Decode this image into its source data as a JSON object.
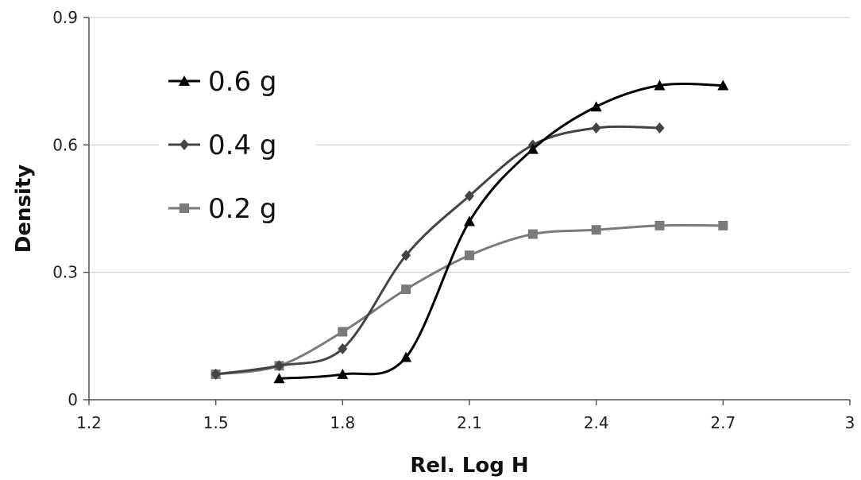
{
  "chart_data": {
    "type": "line",
    "title": "",
    "xlabel": "Rel. Log H",
    "ylabel": "Density",
    "xlim": [
      1.2,
      3.0
    ],
    "ylim": [
      0,
      0.9
    ],
    "xticks": [
      1.2,
      1.5,
      1.8,
      2.1,
      2.4,
      2.7,
      3.0
    ],
    "xtick_labels": [
      "1.2",
      "1.5",
      "1.8",
      "2.1",
      "2.4",
      "2.7",
      "3"
    ],
    "yticks": [
      0,
      0.3,
      0.6,
      0.9
    ],
    "ytick_labels": [
      "0",
      "0.3",
      "0.6",
      "0.9"
    ],
    "grid": "horizontal",
    "legend": "top-left",
    "smooth": true,
    "series": [
      {
        "name": "0.6 g",
        "marker": "triangle",
        "color": "#000000",
        "x": [
          1.65,
          1.8,
          1.95,
          2.1,
          2.25,
          2.4,
          2.55,
          2.7
        ],
        "y": [
          0.05,
          0.06,
          0.1,
          0.42,
          0.59,
          0.69,
          0.74,
          0.74
        ]
      },
      {
        "name": "0.4 g",
        "marker": "diamond",
        "color": "#444444",
        "x": [
          1.5,
          1.65,
          1.8,
          1.95,
          2.1,
          2.25,
          2.4,
          2.55
        ],
        "y": [
          0.06,
          0.08,
          0.12,
          0.34,
          0.48,
          0.6,
          0.64,
          0.64
        ]
      },
      {
        "name": "0.2 g",
        "marker": "square",
        "color": "#7a7a7a",
        "x": [
          1.5,
          1.65,
          1.8,
          1.95,
          2.1,
          2.25,
          2.4,
          2.55,
          2.7
        ],
        "y": [
          0.06,
          0.08,
          0.16,
          0.26,
          0.34,
          0.39,
          0.4,
          0.41,
          0.41
        ]
      }
    ]
  }
}
